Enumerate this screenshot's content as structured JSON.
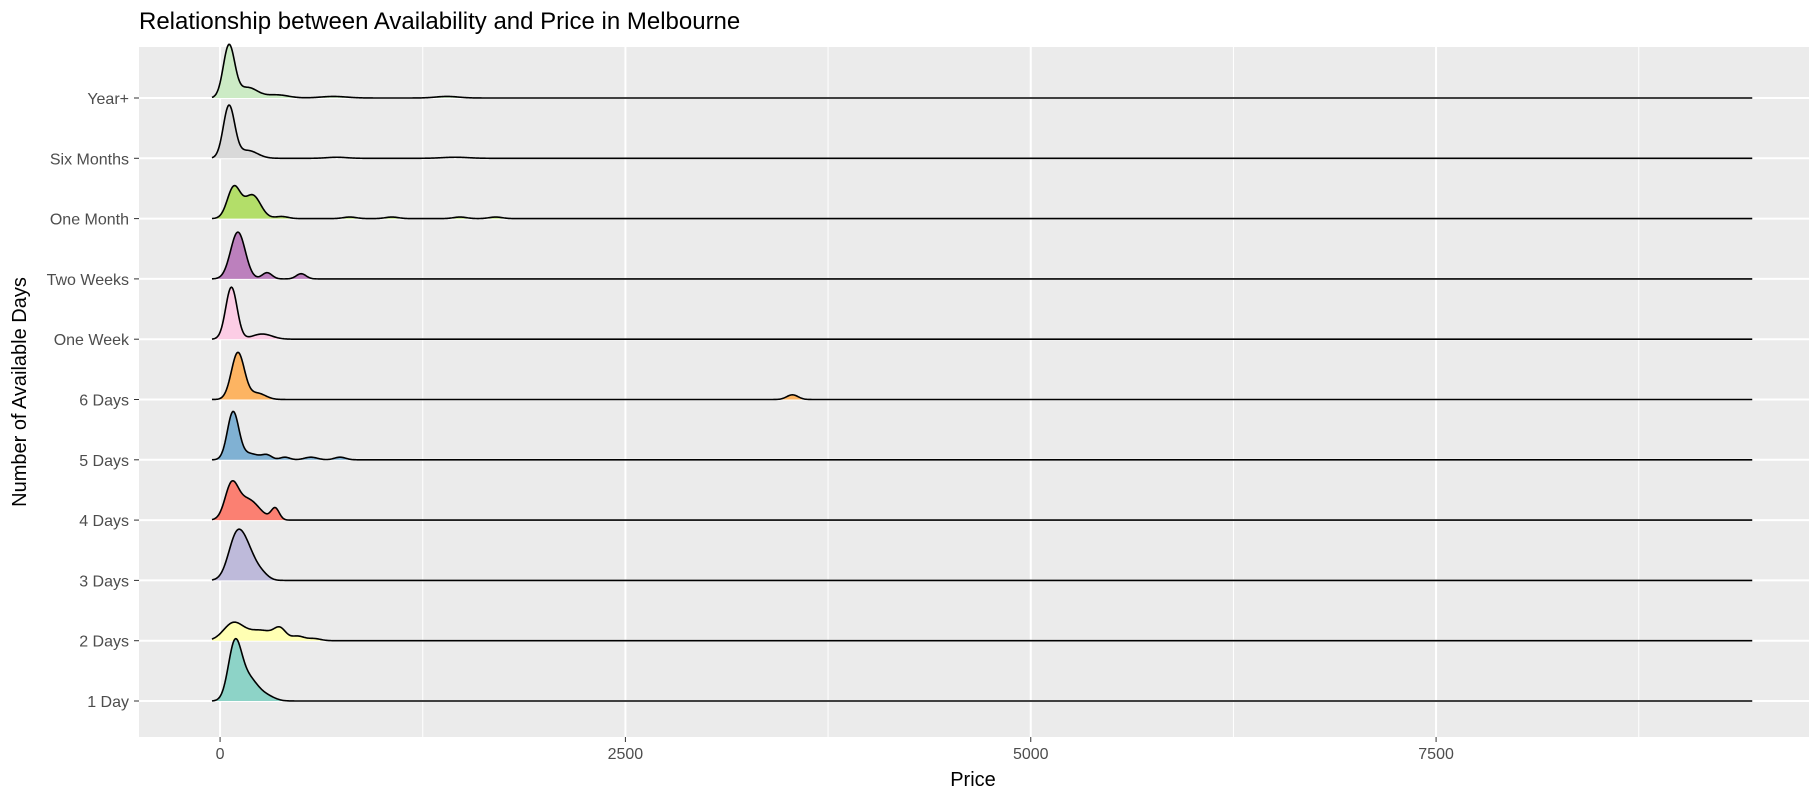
{
  "chart_data": {
    "type": "ridgeline",
    "title": "Relationship between Availability and Price in Melbourne",
    "xlabel": "Price",
    "ylabel": "Number of Available Days",
    "xlim": [
      -500,
      9800
    ],
    "x_ticks": [
      0,
      2500,
      5000,
      7500
    ],
    "x_tick_labels": [
      "0",
      "2500",
      "5000",
      "7500"
    ],
    "density_x_range": [
      -50,
      9450
    ],
    "categories": [
      "1 Day",
      "2 Days",
      "3 Days",
      "4 Days",
      "5 Days",
      "6 Days",
      "One Week",
      "Two Weeks",
      "One Month",
      "Six Months",
      "Year+"
    ],
    "series": [
      {
        "category": "1 Day",
        "color": "#8DD3C7",
        "peaks": [
          [
            90,
            1.0,
            40
          ],
          [
            170,
            0.45,
            60
          ],
          [
            290,
            0.08,
            50
          ]
        ]
      },
      {
        "category": "2 Days",
        "color": "#FFFFB3",
        "peaks": [
          [
            80,
            0.32,
            60
          ],
          [
            250,
            0.2,
            90
          ],
          [
            370,
            0.18,
            35
          ],
          [
            480,
            0.08,
            40
          ],
          [
            580,
            0.04,
            40
          ]
        ]
      },
      {
        "category": "3 Days",
        "color": "#BEBADA",
        "peaks": [
          [
            100,
            0.8,
            50
          ],
          [
            175,
            0.45,
            50
          ],
          [
            260,
            0.1,
            40
          ]
        ]
      },
      {
        "category": "4 Days",
        "color": "#FB8072",
        "peaks": [
          [
            70,
            0.6,
            40
          ],
          [
            170,
            0.4,
            70
          ],
          [
            340,
            0.22,
            25
          ]
        ]
      },
      {
        "category": "5 Days",
        "color": "#80B1D3",
        "peaks": [
          [
            80,
            0.9,
            35
          ],
          [
            180,
            0.12,
            60
          ],
          [
            290,
            0.08,
            30
          ],
          [
            400,
            0.05,
            30
          ],
          [
            560,
            0.05,
            40
          ],
          [
            740,
            0.05,
            35
          ]
        ]
      },
      {
        "category": "6 Days",
        "color": "#FDB462",
        "peaks": [
          [
            110,
            0.9,
            40
          ],
          [
            230,
            0.12,
            50
          ],
          [
            3530,
            0.09,
            35
          ]
        ]
      },
      {
        "category": "One Week",
        "color": "#FCCDE5",
        "peaks": [
          [
            70,
            1.0,
            35
          ],
          [
            260,
            0.1,
            60
          ]
        ]
      },
      {
        "category": "Two Weeks",
        "color": "#BC80BD",
        "peaks": [
          [
            110,
            0.9,
            45
          ],
          [
            290,
            0.12,
            30
          ],
          [
            500,
            0.1,
            30
          ]
        ]
      },
      {
        "category": "One Month",
        "color": "#B3DE69",
        "peaks": [
          [
            85,
            0.6,
            40
          ],
          [
            200,
            0.45,
            50
          ],
          [
            380,
            0.04,
            40
          ],
          [
            800,
            0.03,
            40
          ],
          [
            1060,
            0.03,
            40
          ],
          [
            1480,
            0.03,
            40
          ],
          [
            1700,
            0.03,
            40
          ]
        ]
      },
      {
        "category": "Six Months",
        "color": "#D9D9D9",
        "peaks": [
          [
            55,
            1.0,
            35
          ],
          [
            170,
            0.15,
            60
          ],
          [
            720,
            0.02,
            60
          ],
          [
            1450,
            0.02,
            80
          ]
        ]
      },
      {
        "category": "Year+",
        "color": "#CCEBC5",
        "peaks": [
          [
            55,
            1.0,
            35
          ],
          [
            170,
            0.2,
            60
          ],
          [
            350,
            0.06,
            70
          ],
          [
            700,
            0.03,
            80
          ],
          [
            1400,
            0.03,
            70
          ]
        ]
      }
    ]
  }
}
